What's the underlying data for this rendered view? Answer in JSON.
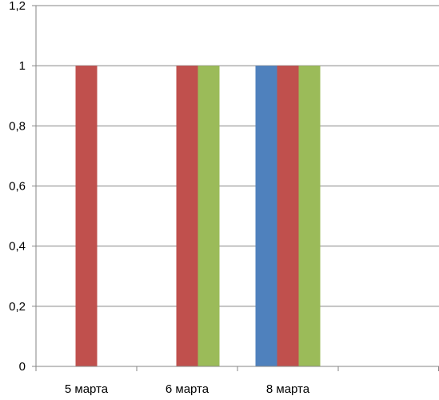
{
  "chart_data": {
    "type": "bar",
    "categories": [
      "5 марта",
      "6 марта",
      "8 марта",
      ""
    ],
    "series": [
      {
        "values": [
          0,
          0,
          1,
          0
        ],
        "color": "#4f81bd"
      },
      {
        "values": [
          1,
          1,
          1,
          0
        ],
        "color": "#c0504d"
      },
      {
        "values": [
          0,
          1,
          1,
          0
        ],
        "color": "#9bbb59"
      }
    ],
    "yticks": [
      "0",
      "0,2",
      "0,4",
      "0,6",
      "0,8",
      "1",
      "1,2"
    ],
    "ylim": [
      0,
      1.2
    ],
    "grid": true,
    "legend": false,
    "title": "",
    "xlabel": "",
    "ylabel": ""
  }
}
